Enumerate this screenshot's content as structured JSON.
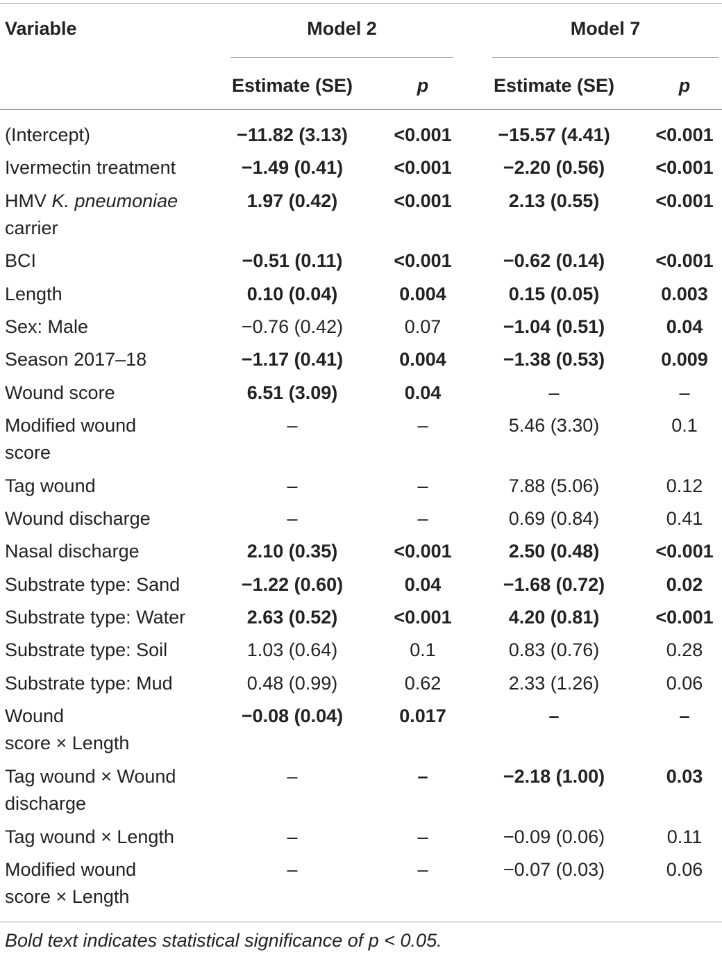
{
  "header": {
    "variable": "Variable",
    "model2": "Model 2",
    "model7": "Model 7",
    "estimate": "Estimate (SE)",
    "p": "p"
  },
  "rows": [
    {
      "label1": "(Intercept)",
      "m2e": "−11.82 (3.13)",
      "m2p": "<0.001",
      "m7e": "−15.57 (4.41)",
      "m7p": "<0.001"
    },
    {
      "label1": "Ivermectin treatment",
      "m2e": "−1.49 (0.41)",
      "m2p": "<0.001",
      "m7e": "−2.20 (0.56)",
      "m7p": "<0.001"
    },
    {
      "label1a": "HMV ",
      "label1b": "K. pneumoniae",
      "label2": "carrier",
      "m2e": "1.97 (0.42)",
      "m2p": "<0.001",
      "m7e": "2.13 (0.55)",
      "m7p": "<0.001"
    },
    {
      "label1": "BCI",
      "m2e": "−0.51 (0.11)",
      "m2p": "<0.001",
      "m7e": "−0.62 (0.14)",
      "m7p": "<0.001"
    },
    {
      "label1": "Length",
      "m2e": "0.10 (0.04)",
      "m2p": "0.004",
      "m7e": "0.15 (0.05)",
      "m7p": "0.003"
    },
    {
      "label1": "Sex: Male",
      "m2e": "−0.76 (0.42)",
      "m2p": "0.07",
      "m7e": "−1.04 (0.51)",
      "m7p": "0.04"
    },
    {
      "label1": "Season 2017–18",
      "m2e": "−1.17 (0.41)",
      "m2p": "0.004",
      "m7e": "−1.38 (0.53)",
      "m7p": "0.009"
    },
    {
      "label1": "Wound score",
      "m2e": "6.51 (3.09)",
      "m2p": "0.04",
      "m7e": "–",
      "m7p": "–"
    },
    {
      "label1": "Modified wound",
      "label2": "score",
      "m2e": "–",
      "m2p": "–",
      "m7e": "5.46 (3.30)",
      "m7p": "0.1"
    },
    {
      "label1": "Tag wound",
      "m2e": "–",
      "m2p": "–",
      "m7e": "7.88 (5.06)",
      "m7p": "0.12"
    },
    {
      "label1": "Wound discharge",
      "m2e": "–",
      "m2p": "–",
      "m7e": "0.69 (0.84)",
      "m7p": "0.41"
    },
    {
      "label1": "Nasal discharge",
      "m2e": "2.10 (0.35)",
      "m2p": "<0.001",
      "m7e": "2.50 (0.48)",
      "m7p": "<0.001"
    },
    {
      "label1": "Substrate type: Sand",
      "m2e": "−1.22 (0.60)",
      "m2p": "0.04",
      "m7e": "−1.68 (0.72)",
      "m7p": "0.02"
    },
    {
      "label1": "Substrate type: Water",
      "m2e": "2.63 (0.52)",
      "m2p": "<0.001",
      "m7e": "4.20 (0.81)",
      "m7p": "<0.001"
    },
    {
      "label1": "Substrate type: Soil",
      "m2e": "1.03 (0.64)",
      "m2p": "0.1",
      "m7e": "0.83 (0.76)",
      "m7p": "0.28"
    },
    {
      "label1": "Substrate type: Mud",
      "m2e": "0.48 (0.99)",
      "m2p": "0.62",
      "m7e": "2.33 (1.26)",
      "m7p": "0.06"
    },
    {
      "label1": "Wound",
      "label2": "score × Length",
      "m2e": "−0.08 (0.04)",
      "m2p": "0.017",
      "m7e": "–",
      "m7p": "–"
    },
    {
      "label1": "Tag wound × Wound",
      "label2": "discharge",
      "m2e": "–",
      "m2p": "–",
      "m7e": "−2.18 (1.00)",
      "m7p": "0.03"
    },
    {
      "label1": "Tag wound × Length",
      "m2e": "–",
      "m2p": "–",
      "m7e": "−0.09 (0.06)",
      "m7p": "0.11"
    },
    {
      "label1": "Modified wound",
      "label2": "score × Length",
      "m2e": "–",
      "m2p": "–",
      "m7e": "−0.07 (0.03)",
      "m7p": "0.06"
    }
  ],
  "footnote": "Bold text indicates statistical significance of p < 0.05."
}
